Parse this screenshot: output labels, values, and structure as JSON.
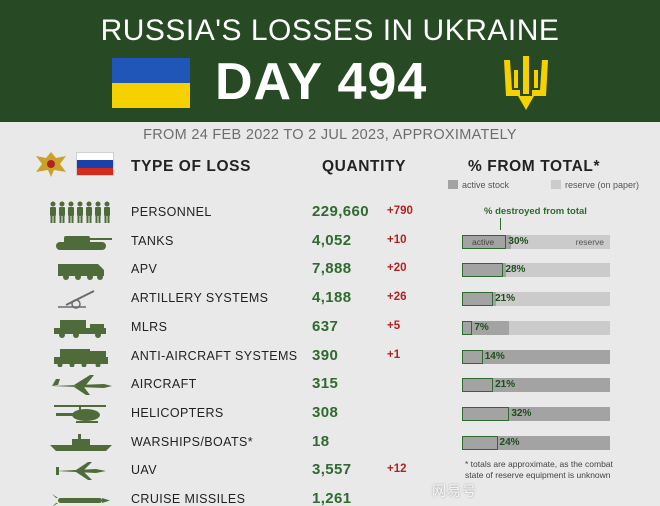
{
  "banner": {
    "title": "RUSSIA'S LOSSES IN UKRAINE",
    "day": "DAY 494",
    "colors": {
      "background": "#274a25",
      "ua_blue": "#1f56b8",
      "ua_yellow": "#f5d100"
    }
  },
  "subtitle": "FROM 24 FEB 2022 TO 2 JUL 2023, APPROXIMATELY",
  "headers": {
    "type": "TYPE OF LOSS",
    "quantity": "QUANTITY",
    "percent": "% FROM TOTAL*"
  },
  "legend": {
    "active": "active stock",
    "reserve": "reserve (on paper)",
    "destroyed": "% destroyed from total",
    "bar_active_label": "active",
    "bar_reserve_label": "reserve"
  },
  "rows": [
    {
      "icon": "soldiers-icon",
      "name": "PERSONNEL",
      "quantity": "229,660",
      "delta": "+790"
    },
    {
      "icon": "tank-icon",
      "name": "TANKS",
      "quantity": "4,052",
      "delta": "+10",
      "percent": "30%",
      "active_share": 0.33,
      "destroyed_share": 0.3
    },
    {
      "icon": "apv-icon",
      "name": "APV",
      "quantity": "7,888",
      "delta": "+20",
      "percent": "28%",
      "active_share": 0.3,
      "destroyed_share": 0.28
    },
    {
      "icon": "artillery-icon",
      "name": "ARTILLERY SYSTEMS",
      "quantity": "4,188",
      "delta": "+26",
      "percent": "21%",
      "active_share": 0.23,
      "destroyed_share": 0.21
    },
    {
      "icon": "mlrs-icon",
      "name": "MLRS",
      "quantity": "637",
      "delta": "+5",
      "percent": "7%",
      "active_share": 0.32,
      "destroyed_share": 0.07
    },
    {
      "icon": "anti-aircraft-icon",
      "name": "ANTI-AIRCRAFT SYSTEMS",
      "quantity": "390",
      "delta": "+1",
      "percent": "14%",
      "active_share": 1.0,
      "destroyed_share": 0.14
    },
    {
      "icon": "aircraft-icon",
      "name": "AIRCRAFT",
      "quantity": "315",
      "delta": "",
      "percent": "21%",
      "active_share": 1.0,
      "destroyed_share": 0.21
    },
    {
      "icon": "helicopter-icon",
      "name": "HELICOPTERS",
      "quantity": "308",
      "delta": "",
      "percent": "32%",
      "active_share": 1.0,
      "destroyed_share": 0.32
    },
    {
      "icon": "warship-icon",
      "name": "WARSHIPS/BOATS*",
      "quantity": "18",
      "delta": "",
      "percent": "24%",
      "active_share": 1.0,
      "destroyed_share": 0.24
    },
    {
      "icon": "uav-icon",
      "name": "UAV",
      "quantity": "3,557",
      "delta": "+12"
    },
    {
      "icon": "cruise-missile-icon",
      "name": "CRUISE MISSILES",
      "quantity": "1,261",
      "delta": ""
    }
  ],
  "footnote": "* totals are approximate, as the combat state of reserve equipment is unknown",
  "watermark": "网易号"
}
